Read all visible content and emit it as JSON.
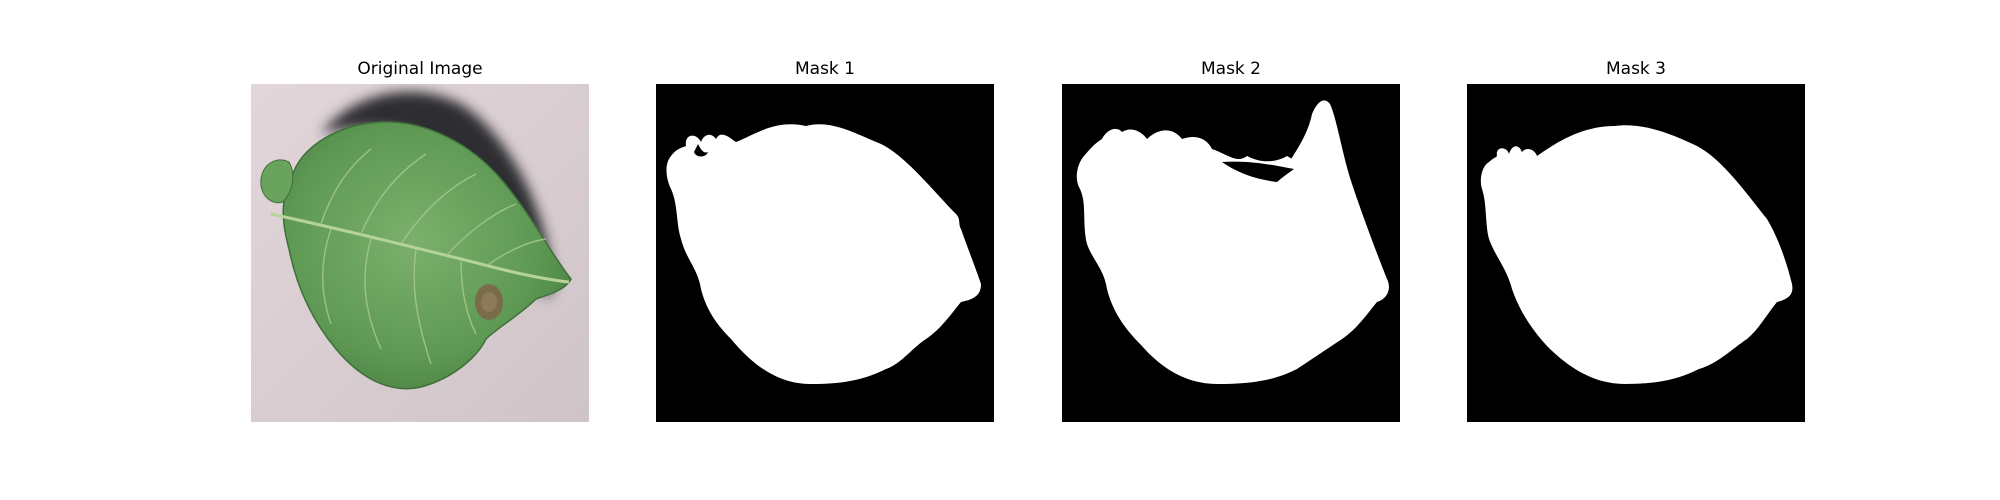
{
  "figure": {
    "panels": [
      {
        "title": "Original Image",
        "kind": "photo",
        "subject": "leaf-photo"
      },
      {
        "title": "Mask 1",
        "kind": "mask"
      },
      {
        "title": "Mask 2",
        "kind": "mask"
      },
      {
        "title": "Mask 3",
        "kind": "mask"
      }
    ]
  },
  "colors": {
    "background": "#ffffff",
    "mask_background": "#000000",
    "mask_foreground": "#ffffff",
    "leaf_green": "#5e9a53",
    "leaf_vein": "#a9c88e",
    "photo_background": "#d8ccd0",
    "shadow": "#333333"
  }
}
